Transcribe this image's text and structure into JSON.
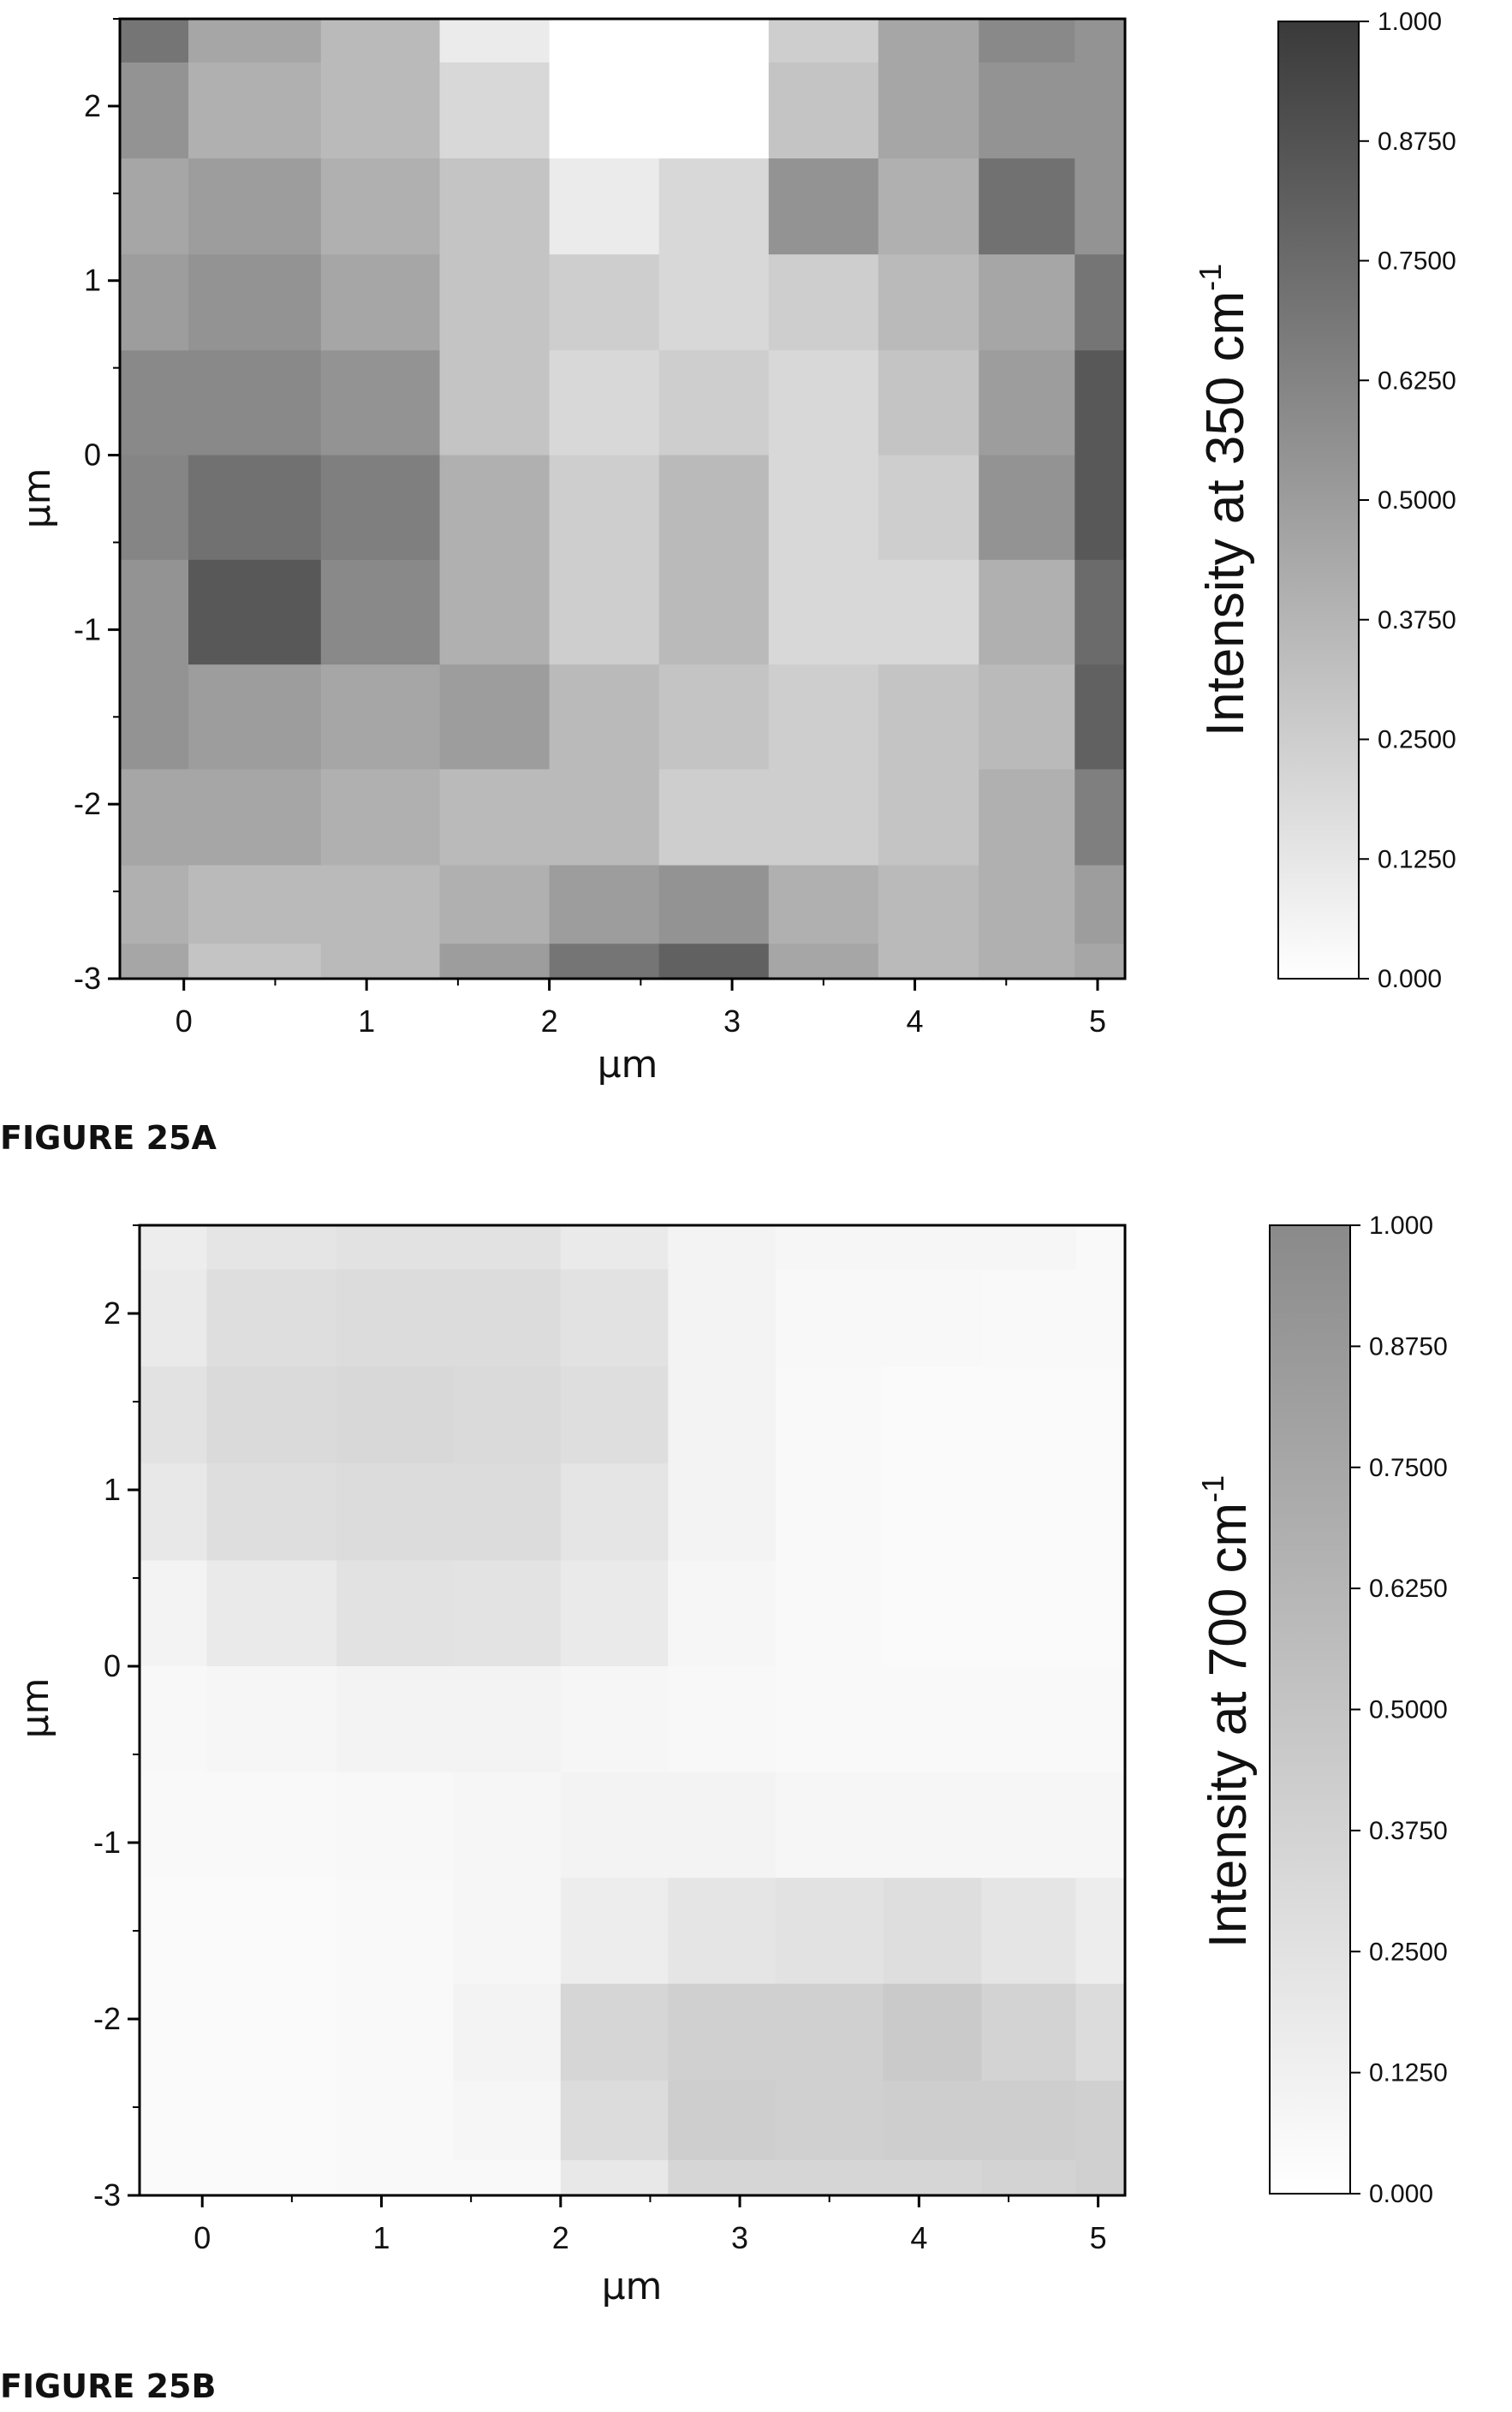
{
  "chart_data": [
    {
      "type": "heatmap",
      "figure_label": "FIGURE 25A",
      "xlabel": "μm",
      "ylabel": "μm",
      "xlim": [
        -0.35,
        5.15
      ],
      "ylim": [
        -3.0,
        2.5
      ],
      "x_ticks": [
        "0",
        "1",
        "2",
        "3",
        "4",
        "5"
      ],
      "y_ticks": [
        "2",
        "1",
        "0",
        "-1",
        "-2",
        "-3"
      ],
      "colorbar": {
        "title": "Intensity at 350 cm",
        "title_superscript": "-1",
        "ticks": [
          "1.000",
          "0.8750",
          "0.7500",
          "0.6250",
          "0.5000",
          "0.3750",
          "0.2500",
          "0.1250",
          "0.000"
        ],
        "range": [
          0.0,
          1.0
        ],
        "max_color": "#3a3a3a",
        "min_color": "#ffffff"
      },
      "x": [
        -0.35,
        0.4,
        1.1,
        1.7,
        2.3,
        2.9,
        3.5,
        4.1,
        4.6,
        5.15
      ],
      "y": [
        2.5,
        2.0,
        1.4,
        0.9,
        0.3,
        -0.3,
        -0.9,
        -1.5,
        -2.1,
        -2.6,
        -3.0
      ],
      "z": [
        [
          0.7,
          0.45,
          0.35,
          0.1,
          0.0,
          0.0,
          0.25,
          0.45,
          0.6,
          0.55
        ],
        [
          0.55,
          0.4,
          0.35,
          0.2,
          0.0,
          0.0,
          0.3,
          0.45,
          0.55,
          0.55
        ],
        [
          0.45,
          0.5,
          0.4,
          0.3,
          0.1,
          0.2,
          0.55,
          0.4,
          0.72,
          0.55
        ],
        [
          0.5,
          0.55,
          0.45,
          0.3,
          0.25,
          0.2,
          0.25,
          0.35,
          0.45,
          0.7
        ],
        [
          0.6,
          0.6,
          0.55,
          0.3,
          0.2,
          0.25,
          0.2,
          0.3,
          0.5,
          0.85
        ],
        [
          0.62,
          0.72,
          0.65,
          0.4,
          0.25,
          0.35,
          0.2,
          0.25,
          0.55,
          0.85
        ],
        [
          0.55,
          0.85,
          0.6,
          0.4,
          0.25,
          0.35,
          0.2,
          0.2,
          0.4,
          0.75
        ],
        [
          0.55,
          0.5,
          0.45,
          0.5,
          0.35,
          0.3,
          0.25,
          0.3,
          0.35,
          0.8
        ],
        [
          0.45,
          0.45,
          0.4,
          0.35,
          0.35,
          0.25,
          0.25,
          0.3,
          0.4,
          0.65
        ],
        [
          0.4,
          0.35,
          0.35,
          0.4,
          0.5,
          0.55,
          0.4,
          0.35,
          0.4,
          0.5
        ],
        [
          0.45,
          0.3,
          0.35,
          0.5,
          0.7,
          0.8,
          0.45,
          0.35,
          0.4,
          0.45
        ]
      ]
    },
    {
      "type": "heatmap",
      "figure_label": "FIGURE 25B",
      "xlabel": "μm",
      "ylabel": "μm",
      "xlim": [
        -0.35,
        5.15
      ],
      "ylim": [
        -3.0,
        2.5
      ],
      "x_ticks": [
        "0",
        "1",
        "2",
        "3",
        "4",
        "5"
      ],
      "y_ticks": [
        "2",
        "1",
        "0",
        "-1",
        "-2",
        "-3"
      ],
      "colorbar": {
        "title": "Intensity at 700 cm",
        "title_superscript": "-1",
        "ticks": [
          "1.000",
          "0.8750",
          "0.7500",
          "0.6250",
          "0.5000",
          "0.3750",
          "0.2500",
          "0.1250",
          "0.000"
        ],
        "range": [
          0.0,
          1.0
        ],
        "max_color": "#8a8a8a",
        "min_color": "#ffffff"
      },
      "x": [
        -0.35,
        0.4,
        1.1,
        1.7,
        2.3,
        2.9,
        3.5,
        4.1,
        4.6,
        5.15
      ],
      "y": [
        2.5,
        2.0,
        1.4,
        0.9,
        0.3,
        -0.3,
        -0.9,
        -1.5,
        -2.1,
        -2.6,
        -3.0
      ],
      "z": [
        [
          0.15,
          0.22,
          0.25,
          0.25,
          0.18,
          0.1,
          0.08,
          0.08,
          0.08,
          0.05
        ],
        [
          0.18,
          0.28,
          0.3,
          0.3,
          0.25,
          0.1,
          0.06,
          0.06,
          0.05,
          0.05
        ],
        [
          0.25,
          0.32,
          0.33,
          0.32,
          0.28,
          0.1,
          0.05,
          0.04,
          0.04,
          0.04
        ],
        [
          0.2,
          0.28,
          0.3,
          0.3,
          0.22,
          0.1,
          0.05,
          0.04,
          0.04,
          0.04
        ],
        [
          0.1,
          0.18,
          0.25,
          0.24,
          0.18,
          0.08,
          0.05,
          0.04,
          0.04,
          0.04
        ],
        [
          0.06,
          0.08,
          0.1,
          0.1,
          0.08,
          0.06,
          0.05,
          0.05,
          0.05,
          0.05
        ],
        [
          0.05,
          0.05,
          0.06,
          0.08,
          0.1,
          0.1,
          0.08,
          0.08,
          0.08,
          0.08
        ],
        [
          0.04,
          0.04,
          0.05,
          0.08,
          0.15,
          0.22,
          0.25,
          0.28,
          0.22,
          0.15
        ],
        [
          0.04,
          0.04,
          0.05,
          0.1,
          0.35,
          0.4,
          0.4,
          0.45,
          0.38,
          0.3
        ],
        [
          0.04,
          0.04,
          0.05,
          0.08,
          0.3,
          0.42,
          0.4,
          0.42,
          0.42,
          0.4
        ],
        [
          0.04,
          0.04,
          0.05,
          0.05,
          0.2,
          0.35,
          0.35,
          0.35,
          0.38,
          0.4
        ]
      ],
      "contour_levels": [
        0.125,
        0.25,
        0.375
      ]
    }
  ]
}
